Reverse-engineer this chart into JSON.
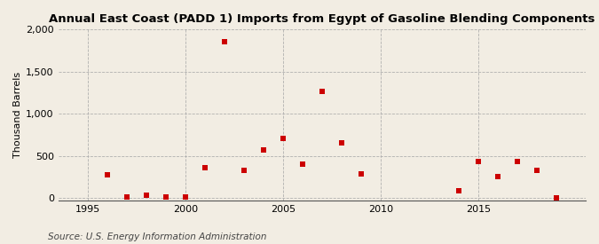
{
  "title": "Annual East Coast (PADD 1) Imports from Egypt of Gasoline Blending Components",
  "ylabel": "Thousand Barrels",
  "source": "Source: U.S. Energy Information Administration",
  "background_color": "#f2ede3",
  "marker_color": "#cc0000",
  "years": [
    1996,
    1997,
    1998,
    1999,
    2000,
    2001,
    2002,
    2003,
    2004,
    2005,
    2006,
    2007,
    2008,
    2009,
    2014,
    2015,
    2016,
    2017,
    2018,
    2019
  ],
  "values": [
    270,
    10,
    30,
    10,
    10,
    360,
    1860,
    330,
    575,
    710,
    400,
    1270,
    650,
    280,
    90,
    430,
    250,
    430,
    330,
    0
  ],
  "xlim": [
    1993.5,
    2020.5
  ],
  "ylim": [
    -30,
    2000
  ],
  "yticks": [
    0,
    500,
    1000,
    1500,
    2000
  ],
  "xticks": [
    1995,
    2000,
    2005,
    2010,
    2015
  ],
  "title_fontsize": 9.5,
  "label_fontsize": 8,
  "tick_fontsize": 8,
  "source_fontsize": 7.5
}
